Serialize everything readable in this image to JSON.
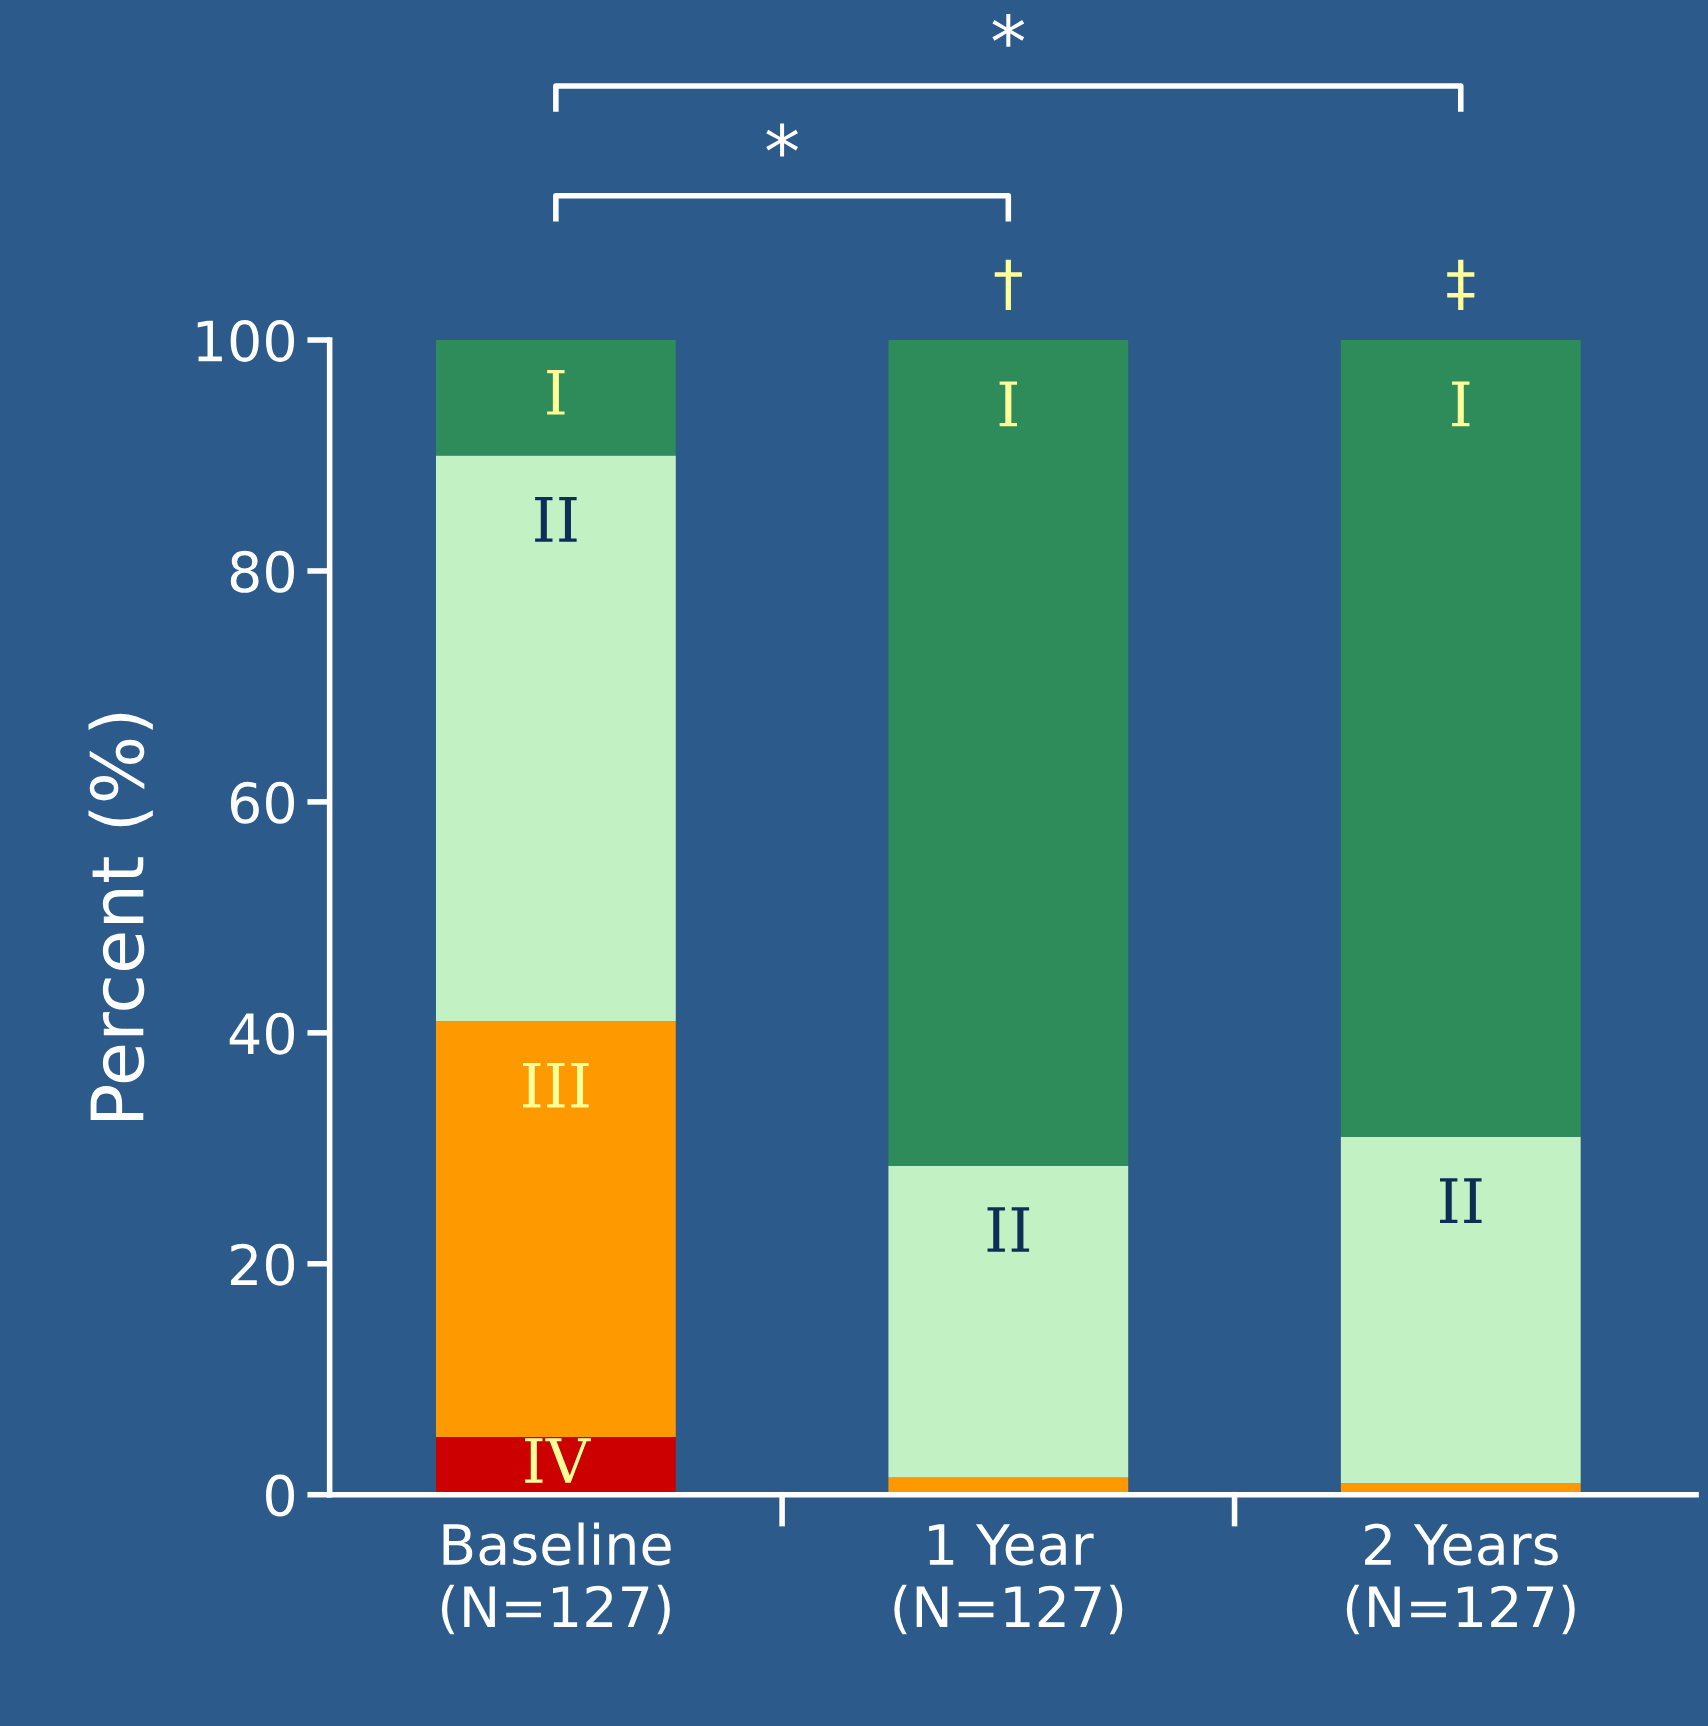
{
  "chart_data": {
    "type": "bar",
    "stacked": true,
    "ylabel": "Percent (%)",
    "categories": [
      "Baseline\n(N=127)",
      "1 Year\n(N=127)",
      "2 Years\n(N=127)"
    ],
    "series": [
      {
        "name": "IV",
        "color": "#cc0000",
        "values": [
          5,
          0,
          0
        ]
      },
      {
        "name": "III",
        "color": "#ff9900",
        "values": [
          36,
          1.5,
          1
        ]
      },
      {
        "name": "II",
        "color": "#c2f2c4",
        "values": [
          49,
          27,
          30
        ]
      },
      {
        "name": "I",
        "color": "#2e8b5a",
        "values": [
          10,
          71.5,
          69
        ]
      }
    ],
    "ylim": [
      0,
      100
    ],
    "yticks": [
      0,
      20,
      40,
      60,
      80,
      100
    ],
    "grid": false,
    "legend": false,
    "annotations": [
      "*",
      "*",
      "†",
      "‡"
    ]
  }
}
